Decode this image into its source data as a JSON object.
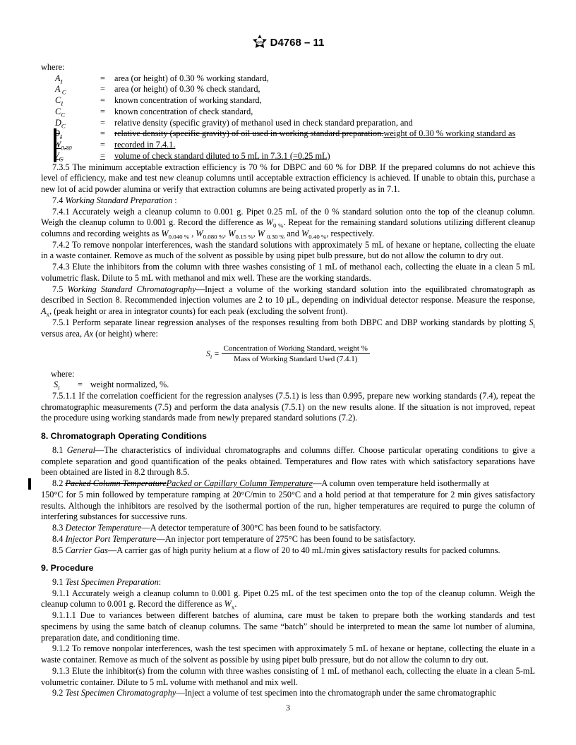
{
  "header": {
    "designation": "D4768 – 11"
  },
  "where_label": "where:",
  "defs": [
    {
      "sym": "A<sub class=\"txt\">I</sub>",
      "text": "area (or height) of 0.30 % working standard,",
      "strike": false,
      "underline": false
    },
    {
      "sym": "A<sub class=\"txt\"> C</sub>",
      "text": "area (or height) of 0.30 % check standard,",
      "strike": false,
      "underline": false
    },
    {
      "sym": "C<sub class=\"txt\">I</sub>",
      "text": "known concentration of working standard,",
      "strike": false,
      "underline": false
    },
    {
      "sym": "C<sub class=\"txt\">C</sub>",
      "text": "known concentration of check standard,",
      "strike": false,
      "underline": false
    },
    {
      "sym": "D<sub class=\"txt\">C</sub>",
      "text": "relative density (specific gravity) of methanol used in check standard preparation, and",
      "strike": false,
      "underline": false
    },
    {
      "sym": "<span class=\"strike\">D<sub class=\"txt\">I</sub></span>",
      "text": "<span class=\"strike\">relative density (specific gravity) of oil used in working standard preparation.</span><span class=\"underline\">weight of 0.30 % working standard as</span>",
      "strike": false,
      "underline": false,
      "changebar": true
    },
    {
      "sym": "<span class=\"underline\">W<sub class=\"txt\">0.30</sub></span>",
      "text": "<span class=\"underline\">recorded in 7.4.1.</span>",
      "changebar": true
    },
    {
      "sym": "<span class=\"underline\">V<sub class=\"txt\">C</sub></span>",
      "text": "<span class=\"underline\">volume of check standard diluted to 5 mL in 7.3.1 (=0.25 mL)</span>",
      "eq_underline": true,
      "changebar": true
    }
  ],
  "p735": "7.3.5 The minimum acceptable extraction efficiency is 70 % for DBPC and 60 % for DBP. If the prepared columns do not achieve this level of efficiency, make and test new cleanup columns until acceptable extraction efficiency is achieved. If unable to obtain this, purchase a new lot of acid powder alumina or verify that extraction columns are being activated properly as in 7.1.",
  "p74": "7.4 <span class=\"ital\">Working Standard Preparation</span> :",
  "p741": "7.4.1 Accurately weigh a cleanup column to 0.001 g. Pipet 0.25 mL of the 0 % standard solution onto the top of the cleanup column. Weigh the cleanup column to 0.001 g. Record the difference as <span class=\"ital\">W</span><sub class=\"txt\">0 %</sub>. Repeat for the remaining standard solutions utilizing different cleanup columns and recording weights as <span class=\"ital\">W</span><sub class=\"txt\">0.040 %</sub> , <span class=\"ital\">W</span><sub class=\"txt\">0.080 %</sub>, <span class=\"ital\">W</span><sub class=\"txt\">0.15 %</sub>, <span class=\"ital\">W</span> <sub class=\"txt\">0.30 %</sub> and <span class=\"ital\">W</span><sub class=\"txt\">0.40 %</sub>, respectively.",
  "p742": "7.4.2 To remove nonpolar interferences, wash the standard solutions with approximately 5 mL of hexane or heptane, collecting the eluate in a waste container. Remove as much of the solvent as possible by using pipet bulb pressure, but do not allow the column to dry out.",
  "p743": "7.4.3 Elute the inhibitors from the column with three washes consisting of 1 mL of methanol each, collecting the eluate in a clean 5 mL volumetric flask. Dilute to 5 mL with methanol and mix well. These are the working standards.",
  "p75": "7.5 <span class=\"ital\">Working Standard Chromatography</span>—Inject a volume of the working standard solution into the equilibrated chromatograph as described in Section 8. Recommended injection volumes are 2 to 10 µL, depending on individual detector response. Measure the response, <span class=\"ital\">A</span><sub class=\"txt\">x</sub>, (peak height or area in integrator counts) for each peak (excluding the solvent front).",
  "p751": "7.5.1 Perform separate linear regression analyses of the responses resulting from both DBPC and DBP working standards by plotting <span class=\"ital\">S</span><sub class=\"txt\">i</sub> versus area, <span class=\"ital\">Ax</span> (or height) where:",
  "formula": {
    "lhs": "S<sub class=\"txt\">i</sub> =",
    "num": "Concentration of Working Standard, weight %",
    "den": "Mass of Working Standard Used (7.4.1)"
  },
  "where2": "where:",
  "def2": {
    "sym": "S<sub class=\"txt\">i</sub>",
    "text": "weight normalized, %."
  },
  "p7511": "7.5.1.1 If the correlation coefficient for the regression analyses (7.5.1) is less than 0.995, prepare new working standards (7.4), repeat the chromatographic measurements (7.5) and perform the data analysis (7.5.1) on the new results alone. If the situation is not improved, repeat the procedure using working standards made from newly prepared standard solutions (7.2).",
  "sec8": "8. Chromatograph Operating Conditions",
  "p81": "8.1 <span class=\"ital\">General</span>—The characteristics of individual chromatographs and columns differ. Choose particular operating conditions to give a complete separation and good quantification of the peaks obtained. Temperatures and flow rates with which satisfactory separations have been obtained are listed in 8.2 through 8.5.",
  "p82": "8.2 <span class=\"ital strike\">Packed Column Temperature</span><span class=\"ital underline\">Packed or Capillary Column Temperature</span>—A column oven temperature held isothermally at 150°C for 5 min followed by temperature ramping at 20°C/min to 250°C and a hold period at that temperature for 2 min gives satisfactory results. Although the inhibitors are resolved by the isothermal portion of the run, higher temperatures are required to purge the column of interfering substances for successive runs.",
  "p83": "8.3 <span class=\"ital\">Detector Temperature</span>—A detector temperature of 300°C has been found to be satisfactory.",
  "p84": "8.4 <span class=\"ital\">Injector Port Temperature</span>—An injector port temperature of 275°C has been found to be satisfactory.",
  "p85": "8.5 <span class=\"ital\">Carrier Gas</span>—A carrier gas of high purity helium at a flow of 20 to 40 mL/min gives satisfactory results for packed columns.",
  "sec9": "9. Procedure",
  "p91": "9.1 <span class=\"ital\">Test Specimen Preparation</span>:",
  "p911": "9.1.1 Accurately weigh a cleanup column to 0.001 g. Pipet 0.25 mL of the test specimen onto the top of the cleanup column. Weigh the cleanup column to 0.001 g. Record the difference as <span class=\"ital\">W</span><sub class=\"txt\">x</sub>.",
  "p9111": "9.1.1.1 Due to variances between different batches of alumina, care must be taken to prepare both the working standards and test specimens by using the same batch of cleanup columns. The same “batch” should be interpreted to mean the same lot number of alumina, preparation date, and conditioning time.",
  "p912": "9.1.2 To remove nonpolar interferences, wash the test specimen with approximately 5 mL of hexane or heptane, collecting the eluate in a waste container. Remove as much of the solvent as possible by using pipet bulb pressure, but do not allow the column to dry out.",
  "p913": "9.1.3 Elute the inhibitor(s) from the column with three washes consisting of 1 mL of methanol each, collecting the eluate in a clean 5-mL volumetric container. Dilute to 5 mL volume with methanol and mix well.",
  "p92": "9.2 <span class=\"ital\">Test Specimen Chromatography</span>—Inject a volume of test specimen into the chromatograph under the same chromatographic",
  "page_number": "3",
  "colors": {
    "text": "#000000",
    "bg": "#ffffff"
  }
}
